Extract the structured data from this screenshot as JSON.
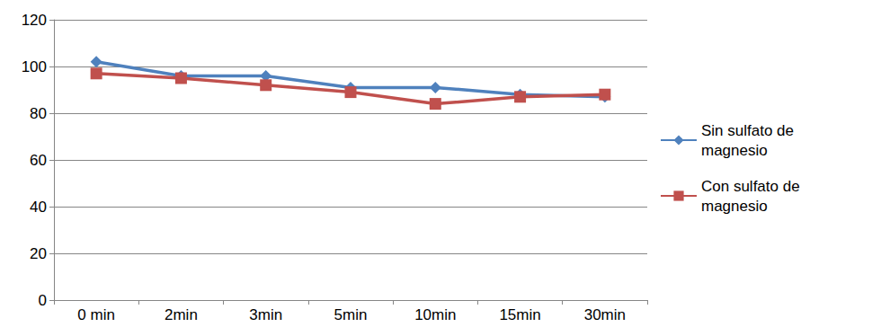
{
  "chart_data": {
    "type": "line",
    "categories": [
      "0 min",
      "2min",
      "3min",
      "5min",
      "10min",
      "15min",
      "30min"
    ],
    "series": [
      {
        "name": "Sin sulfato de magnesio",
        "color": "#4f81bd",
        "marker": "diamond",
        "values": [
          102,
          96,
          96,
          91,
          91,
          88,
          87
        ]
      },
      {
        "name": "Con sulfato de magnesio",
        "color": "#c0504d",
        "marker": "square",
        "values": [
          97,
          95,
          92,
          89,
          84,
          87,
          88
        ]
      }
    ],
    "ylim": [
      0,
      120
    ],
    "yticks": [
      0,
      20,
      40,
      60,
      80,
      100,
      120
    ],
    "grid": true,
    "legend": "right"
  }
}
